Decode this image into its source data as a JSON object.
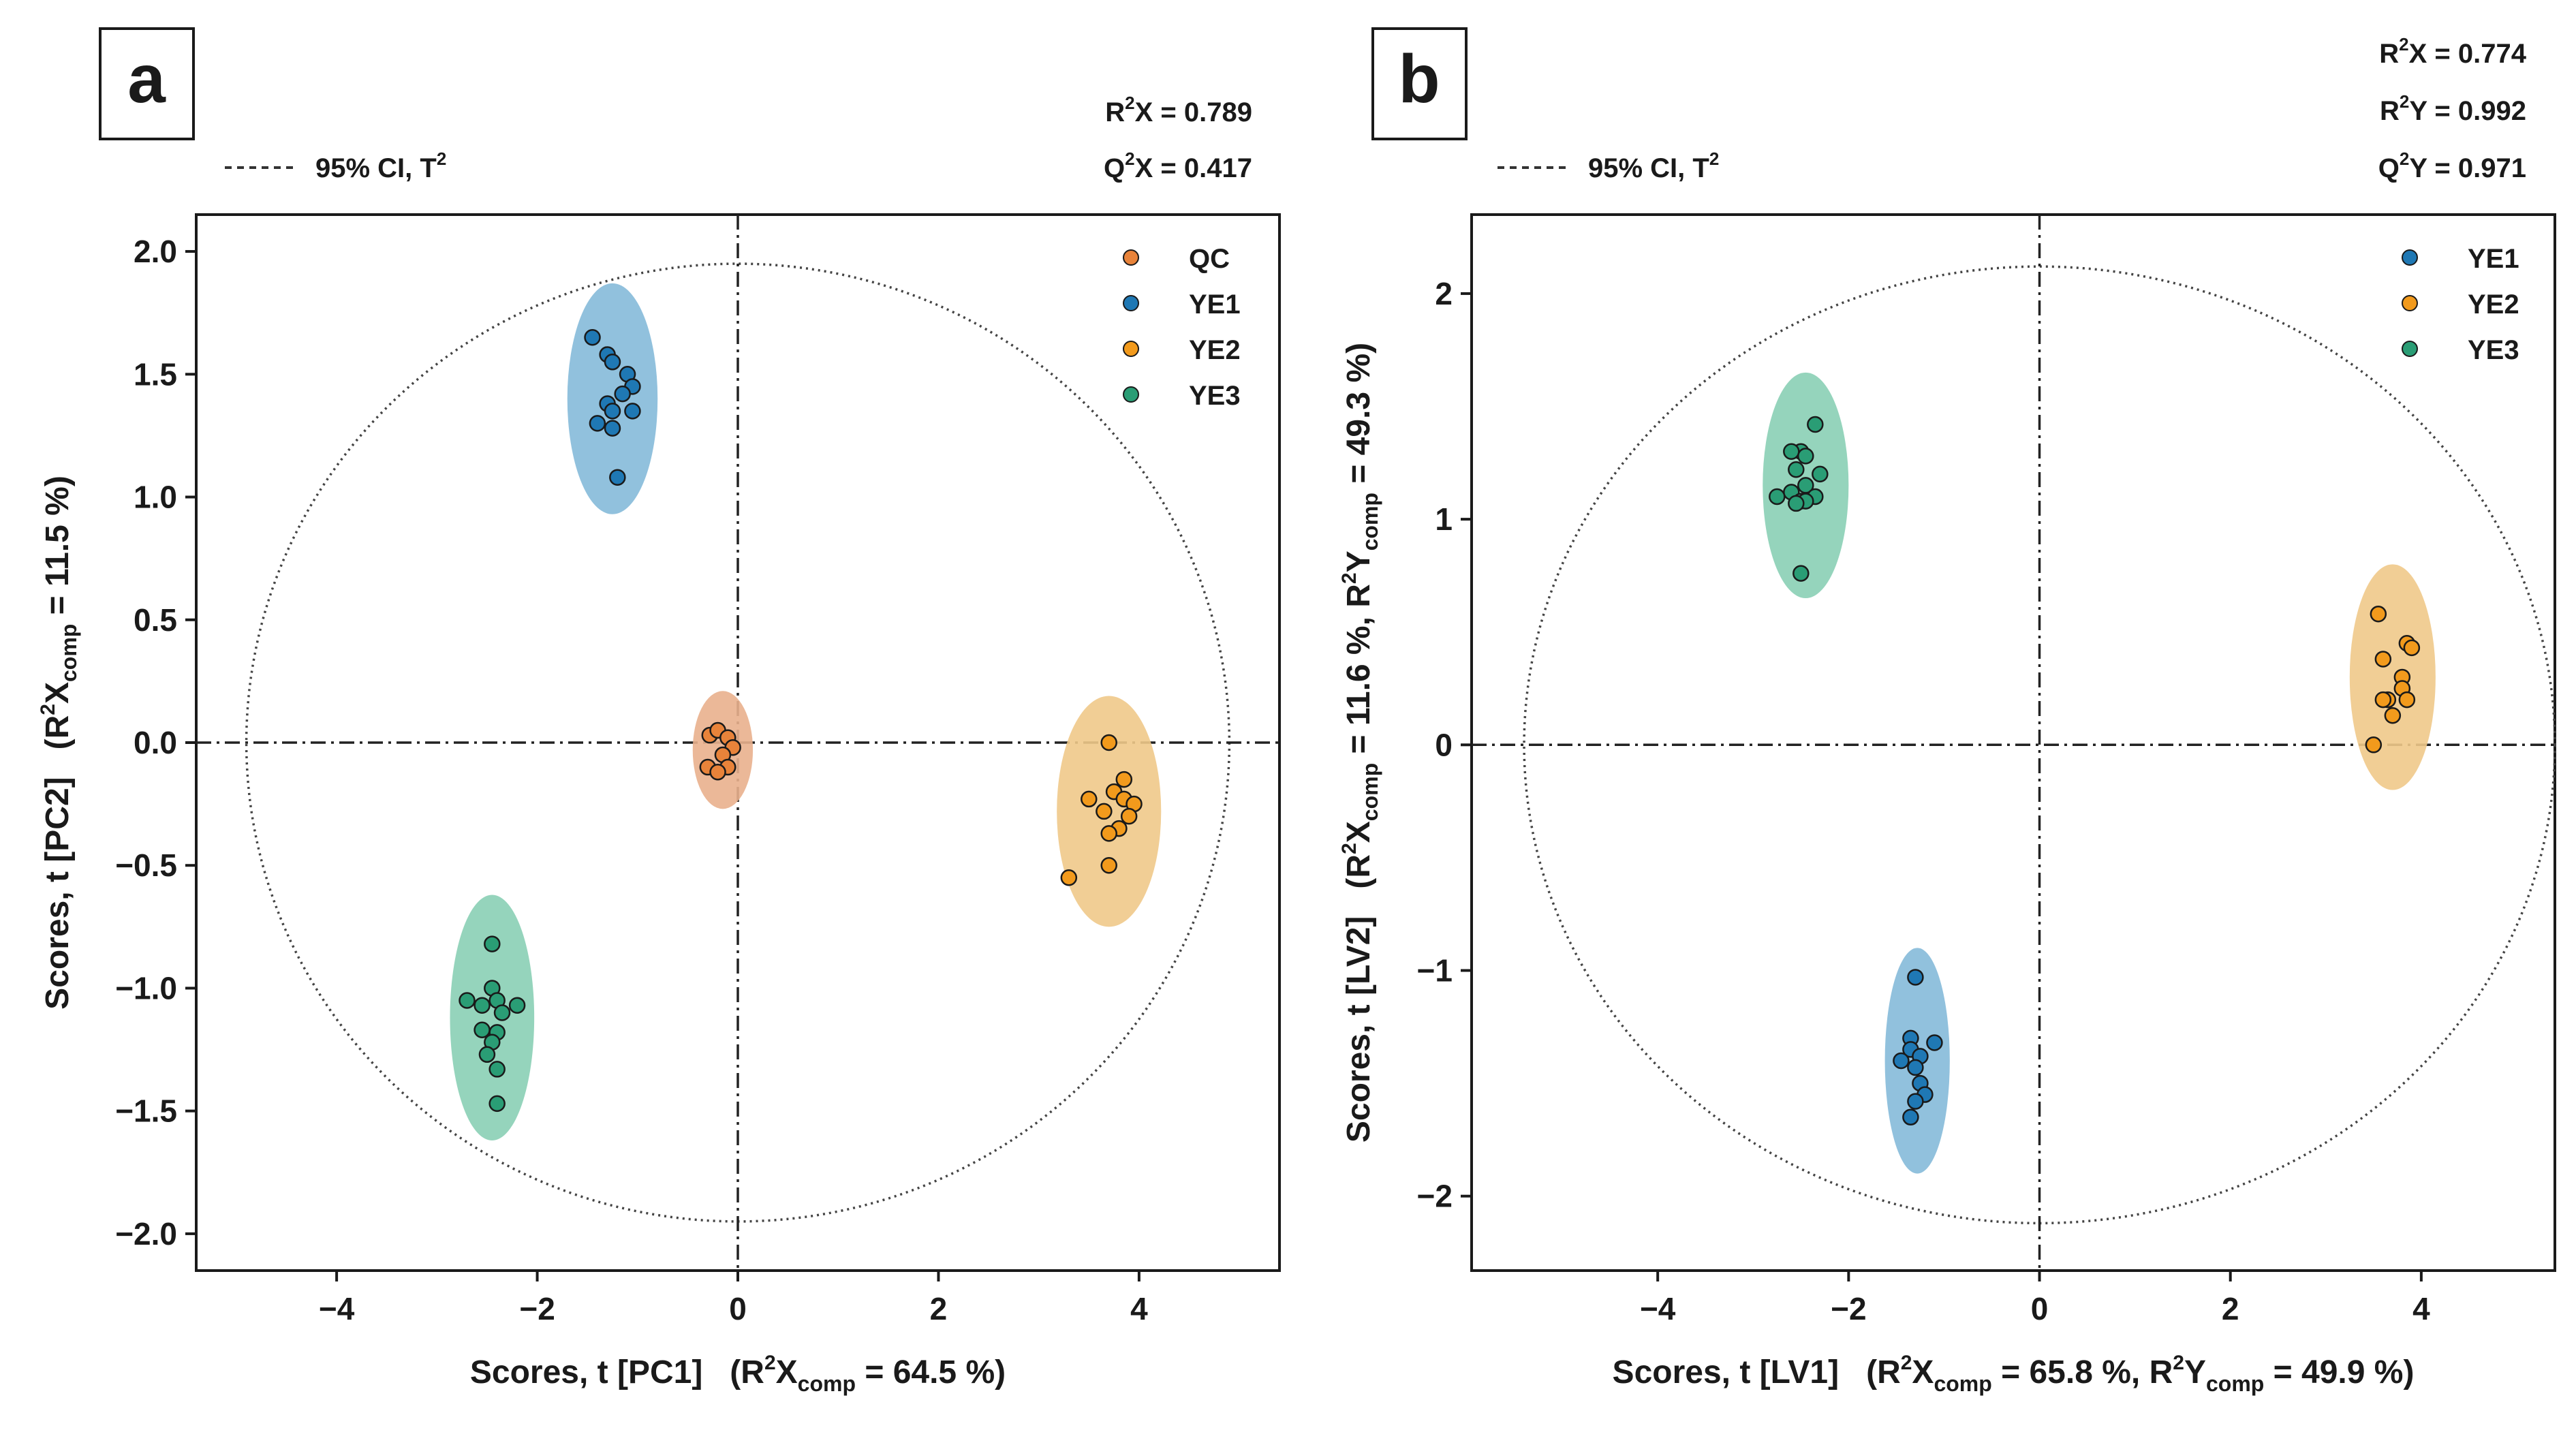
{
  "chart_data": [
    {
      "type": "scatter",
      "panel_label": "a",
      "x_axis": {
        "title": "Scores, t [PC1]",
        "paren_open": "(R",
        "sup": "2",
        "var": "X",
        "sub": "comp",
        "tail": " = 64.5 %)",
        "range": [
          -5.4,
          5.4
        ],
        "ticks": [
          -4,
          -2,
          0,
          2,
          4
        ]
      },
      "y_axis": {
        "title": "Scores, t [PC2]",
        "paren_open": "(R",
        "sup": "2",
        "var": "X",
        "sub": "comp",
        "tail": " = 11.5 %)",
        "range": [
          -2.15,
          2.15
        ],
        "ticks": [
          -2.0,
          -1.5,
          -1.0,
          -0.5,
          0.0,
          0.5,
          1.0,
          1.5,
          2.0
        ]
      },
      "ci_legend": {
        "text": "95% CI, T",
        "sup": "2"
      },
      "ci_ellipse": {
        "a": 4.9,
        "b": 1.95
      },
      "stats": [
        {
          "pre": "R",
          "sup": "2",
          "post": "X = 0.789"
        },
        {
          "pre": "Q",
          "sup": "2",
          "post": "X = 0.417"
        }
      ],
      "legend_position": "top-right",
      "series": [
        {
          "name": "QC",
          "color": "#e8833a",
          "ellipse": {
            "cx": -0.15,
            "cy": -0.03,
            "rx": 0.3,
            "ry": 0.24,
            "color": "#e9b08d"
          },
          "points": [
            [
              -0.28,
              0.03
            ],
            [
              -0.2,
              0.05
            ],
            [
              -0.1,
              0.02
            ],
            [
              -0.05,
              -0.02
            ],
            [
              -0.15,
              -0.05
            ],
            [
              -0.3,
              -0.1
            ],
            [
              -0.1,
              -0.1
            ],
            [
              -0.2,
              -0.12
            ]
          ]
        },
        {
          "name": "YE1",
          "color": "#1f78b4",
          "ellipse": {
            "cx": -1.25,
            "cy": 1.4,
            "rx": 0.45,
            "ry": 0.47,
            "color": "#85bad9"
          },
          "points": [
            [
              -1.45,
              1.65
            ],
            [
              -1.3,
              1.58
            ],
            [
              -1.25,
              1.55
            ],
            [
              -1.1,
              1.5
            ],
            [
              -1.05,
              1.45
            ],
            [
              -1.15,
              1.42
            ],
            [
              -1.3,
              1.38
            ],
            [
              -1.25,
              1.35
            ],
            [
              -1.05,
              1.35
            ],
            [
              -1.4,
              1.3
            ],
            [
              -1.25,
              1.28
            ],
            [
              -1.2,
              1.08
            ]
          ]
        },
        {
          "name": "YE2",
          "color": "#f29a1c",
          "ellipse": {
            "cx": 3.7,
            "cy": -0.28,
            "rx": 0.52,
            "ry": 0.47,
            "color": "#f0c98a"
          },
          "points": [
            [
              3.7,
              0.0
            ],
            [
              3.85,
              -0.15
            ],
            [
              3.75,
              -0.2
            ],
            [
              3.85,
              -0.23
            ],
            [
              3.5,
              -0.23
            ],
            [
              3.65,
              -0.28
            ],
            [
              3.95,
              -0.25
            ],
            [
              3.9,
              -0.3
            ],
            [
              3.8,
              -0.35
            ],
            [
              3.7,
              -0.37
            ],
            [
              3.7,
              -0.5
            ],
            [
              3.3,
              -0.55
            ]
          ]
        },
        {
          "name": "YE3",
          "color": "#2a9d75",
          "ellipse": {
            "cx": -2.45,
            "cy": -1.12,
            "rx": 0.42,
            "ry": 0.5,
            "color": "#89cfb5"
          },
          "points": [
            [
              -2.45,
              -0.82
            ],
            [
              -2.45,
              -1.0
            ],
            [
              -2.7,
              -1.05
            ],
            [
              -2.55,
              -1.07
            ],
            [
              -2.4,
              -1.05
            ],
            [
              -2.2,
              -1.07
            ],
            [
              -2.35,
              -1.1
            ],
            [
              -2.55,
              -1.17
            ],
            [
              -2.4,
              -1.18
            ],
            [
              -2.45,
              -1.22
            ],
            [
              -2.5,
              -1.27
            ],
            [
              -2.4,
              -1.33
            ],
            [
              -2.4,
              -1.47
            ]
          ]
        }
      ]
    },
    {
      "type": "scatter",
      "panel_label": "b",
      "x_axis": {
        "title": "Scores, t [LV1]",
        "paren_open": "(R",
        "sup": "2",
        "var": "X",
        "sub": "comp",
        "tail": " = 65.8 %, R",
        "sup2": "2",
        "var2": "Y",
        "sub2": "comp",
        "tail2": " =  49.9 %)",
        "range": [
          -5.95,
          5.4
        ],
        "ticks": [
          -4,
          -2,
          0,
          2,
          4
        ]
      },
      "y_axis": {
        "title": "Scores, t [LV2]",
        "paren_open": "(R",
        "sup": "2",
        "var": "X",
        "sub": "comp",
        "tail": " = 11.6 %, R",
        "sup2": "2",
        "var2": "Y",
        "sub2": "comp",
        "tail2": " =  49.3 %)",
        "range": [
          -2.33,
          2.35
        ],
        "ticks": [
          -2,
          -1,
          0,
          1,
          2
        ]
      },
      "ci_legend": {
        "text": "95% CI, T",
        "sup": "2"
      },
      "ci_ellipse": {
        "a": 5.4,
        "b": 2.12
      },
      "stats": [
        {
          "pre": "R",
          "sup": "2",
          "post": "X = 0.774"
        },
        {
          "pre": "R",
          "sup": "2",
          "post": "Y = 0.992"
        },
        {
          "pre": "Q",
          "sup": "2",
          "post": "Y = 0.971"
        }
      ],
      "legend_position": "top-right",
      "series": [
        {
          "name": "YE1",
          "color": "#1f78b4",
          "ellipse": {
            "cx": -1.28,
            "cy": -1.4,
            "rx": 0.34,
            "ry": 0.5,
            "color": "#85bad9"
          },
          "points": [
            [
              -1.3,
              -1.03
            ],
            [
              -1.35,
              -1.3
            ],
            [
              -1.1,
              -1.32
            ],
            [
              -1.35,
              -1.35
            ],
            [
              -1.25,
              -1.38
            ],
            [
              -1.45,
              -1.4
            ],
            [
              -1.3,
              -1.43
            ],
            [
              -1.25,
              -1.5
            ],
            [
              -1.2,
              -1.55
            ],
            [
              -1.3,
              -1.58
            ],
            [
              -1.35,
              -1.65
            ]
          ]
        },
        {
          "name": "YE2",
          "color": "#f29a1c",
          "ellipse": {
            "cx": 3.7,
            "cy": 0.3,
            "rx": 0.45,
            "ry": 0.5,
            "color": "#f0c98a"
          },
          "points": [
            [
              3.55,
              0.58
            ],
            [
              3.85,
              0.45
            ],
            [
              3.9,
              0.43
            ],
            [
              3.6,
              0.38
            ],
            [
              3.8,
              0.3
            ],
            [
              3.8,
              0.25
            ],
            [
              3.65,
              0.2
            ],
            [
              3.6,
              0.2
            ],
            [
              3.85,
              0.2
            ],
            [
              3.7,
              0.13
            ],
            [
              3.5,
              0.0
            ]
          ]
        },
        {
          "name": "YE3",
          "color": "#2a9d75",
          "ellipse": {
            "cx": -2.45,
            "cy": 1.15,
            "rx": 0.45,
            "ry": 0.5,
            "color": "#89cfb5"
          },
          "points": [
            [
              -2.35,
              1.42
            ],
            [
              -2.5,
              1.3
            ],
            [
              -2.6,
              1.3
            ],
            [
              -2.45,
              1.28
            ],
            [
              -2.55,
              1.22
            ],
            [
              -2.3,
              1.2
            ],
            [
              -2.45,
              1.15
            ],
            [
              -2.6,
              1.12
            ],
            [
              -2.75,
              1.1
            ],
            [
              -2.35,
              1.1
            ],
            [
              -2.5,
              1.08
            ],
            [
              -2.45,
              1.08
            ],
            [
              -2.55,
              1.07
            ],
            [
              -2.5,
              0.76
            ]
          ]
        }
      ]
    }
  ]
}
